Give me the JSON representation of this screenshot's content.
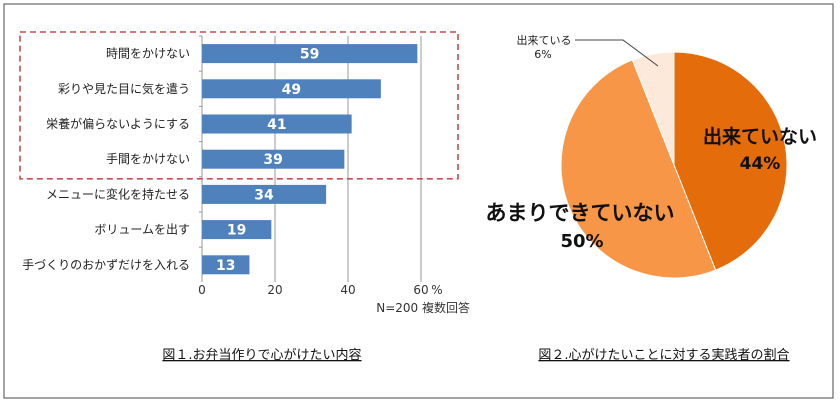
{
  "chart_data": [
    {
      "type": "bar",
      "orientation": "horizontal",
      "categories": [
        "時間をかけない",
        "彩りや見た目に気を遣う",
        "栄養が偏らないようにする",
        "手間をかけない",
        "メニューに変化を持たせる",
        "ボリュームを出す",
        "手づくりのおかずだけを入れる"
      ],
      "values": [
        59,
        49,
        41,
        39,
        34,
        19,
        13
      ],
      "xlim": [
        0,
        60
      ],
      "xticks": [
        "0",
        "20",
        "40",
        "60"
      ],
      "unit": "%",
      "note": "N=200 複数回答",
      "caption": "図１.お弁当作りで心がけたい内容",
      "grid": true,
      "bar_color": "#4F81BD",
      "highlight_box_color": "#C0504D",
      "highlighted_categories": 4
    },
    {
      "type": "pie",
      "labels": [
        "出来ていない",
        "あまりできていない",
        "出来ている"
      ],
      "values": [
        44,
        50,
        6
      ],
      "value_labels": [
        "44%",
        "50%",
        "6%"
      ],
      "colors": [
        "#E46C0A",
        "#F79646",
        "#FDE9D9"
      ],
      "start": "12 o'clock, clockwise",
      "caption": "図２.心がけたいことに対する実践者の割合"
    }
  ]
}
